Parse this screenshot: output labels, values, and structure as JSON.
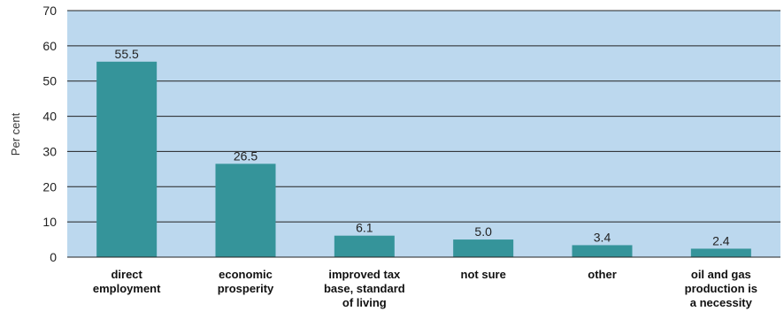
{
  "chart_data": {
    "type": "bar",
    "ylabel": "Per cent",
    "ylim": [
      0,
      70
    ],
    "yticks": [
      0,
      10,
      20,
      30,
      40,
      50,
      60,
      70
    ],
    "grid": true,
    "legend": "none",
    "categories": [
      [
        "direct",
        "employment"
      ],
      [
        "economic",
        "prosperity"
      ],
      [
        "improved tax",
        "base, standard",
        "of living"
      ],
      [
        "not sure"
      ],
      [
        "other"
      ],
      [
        "oil and gas",
        "production is",
        "a necessity"
      ]
    ],
    "values": [
      55.5,
      26.5,
      6.1,
      5.0,
      3.4,
      2.4
    ],
    "value_labels": [
      "55.5",
      "26.5",
      "6.1",
      "5.0",
      "3.4",
      "2.4"
    ],
    "colors": {
      "plot_background": "#bcd8ee",
      "bar": "#35949a",
      "grid": "#222222"
    }
  }
}
